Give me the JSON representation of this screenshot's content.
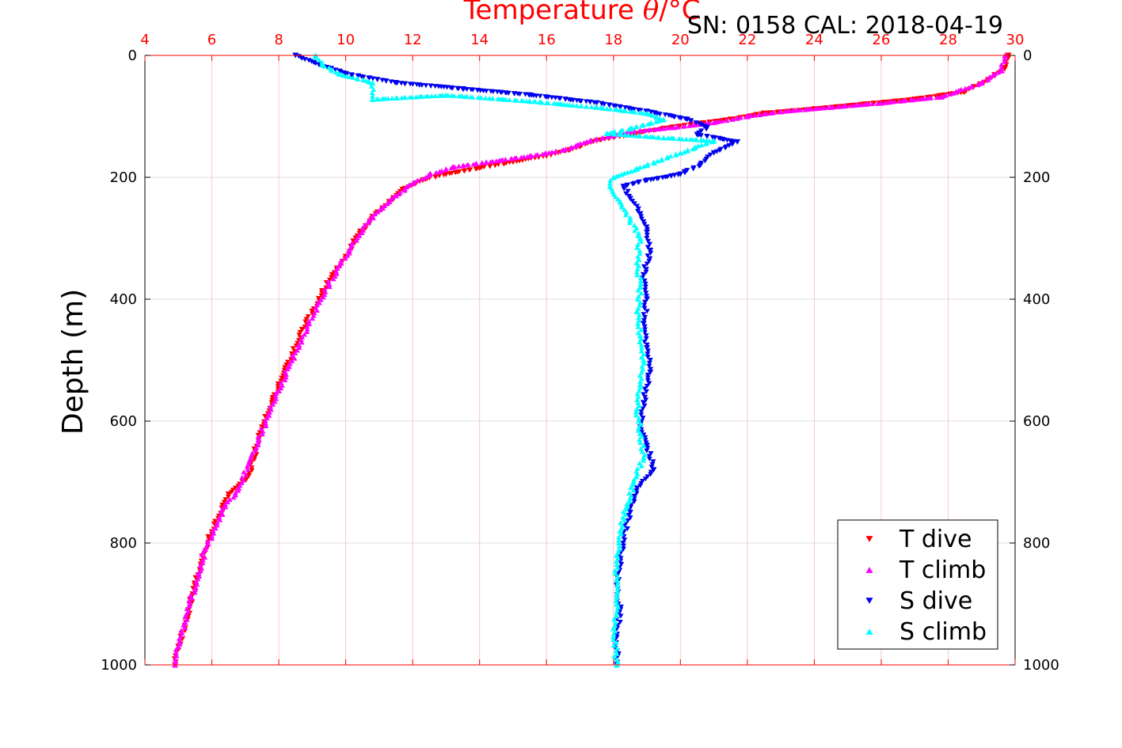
{
  "chart_data": {
    "type": "scatter",
    "title": "SN: 0158  CAL: 2018-04-19",
    "xlabel_text": "Temperature ",
    "xlabel_symbol": "θ",
    "xlabel_unit": "/°C",
    "ylabel": "Depth (m)",
    "xlim": [
      4,
      30
    ],
    "ylim": [
      1000,
      0
    ],
    "y_reversed": true,
    "xticks": [
      4,
      6,
      8,
      10,
      12,
      14,
      16,
      18,
      20,
      22,
      24,
      26,
      28,
      30
    ],
    "yticks": [
      0,
      200,
      400,
      600,
      800,
      1000
    ],
    "grid": true,
    "legend_position": "bottom-right",
    "colors": {
      "temperature_axis": "#ff0000",
      "grid_vertical": "#f2c8d8",
      "grid_horizontal": "#dcdcdc",
      "axis": "#000000"
    },
    "series": [
      {
        "name": "T dive",
        "marker": "triangle-down",
        "color": "#ff0000",
        "points": [
          [
            29.8,
            0
          ],
          [
            29.7,
            20
          ],
          [
            29.2,
            40
          ],
          [
            28.5,
            60
          ],
          [
            27.0,
            72
          ],
          [
            25.5,
            80
          ],
          [
            24.0,
            88
          ],
          [
            22.5,
            95
          ],
          [
            21.5,
            105
          ],
          [
            20.5,
            112
          ],
          [
            19.5,
            120
          ],
          [
            18.5,
            130
          ],
          [
            17.5,
            140
          ],
          [
            16.7,
            155
          ],
          [
            16.0,
            165
          ],
          [
            15.0,
            175
          ],
          [
            14.0,
            185
          ],
          [
            13.0,
            195
          ],
          [
            12.3,
            205
          ],
          [
            11.7,
            220
          ],
          [
            11.3,
            240
          ],
          [
            10.9,
            260
          ],
          [
            10.6,
            280
          ],
          [
            10.3,
            300
          ],
          [
            10.0,
            330
          ],
          [
            9.6,
            360
          ],
          [
            9.3,
            390
          ],
          [
            9.0,
            420
          ],
          [
            8.7,
            450
          ],
          [
            8.4,
            490
          ],
          [
            8.1,
            530
          ],
          [
            7.8,
            570
          ],
          [
            7.5,
            610
          ],
          [
            7.3,
            650
          ],
          [
            7.1,
            690
          ],
          [
            6.5,
            720
          ],
          [
            6.2,
            760
          ],
          [
            5.9,
            790
          ],
          [
            5.7,
            830
          ],
          [
            5.5,
            870
          ],
          [
            5.3,
            910
          ],
          [
            5.2,
            940
          ],
          [
            5.0,
            970
          ],
          [
            4.9,
            1000
          ]
        ]
      },
      {
        "name": "T climb",
        "marker": "triangle-up",
        "color": "#ff00ff",
        "points": [
          [
            29.7,
            0
          ],
          [
            29.6,
            25
          ],
          [
            29.0,
            45
          ],
          [
            27.8,
            68
          ],
          [
            26.0,
            78
          ],
          [
            24.5,
            85
          ],
          [
            23.0,
            92
          ],
          [
            22.0,
            100
          ],
          [
            21.0,
            110
          ],
          [
            19.8,
            118
          ],
          [
            18.5,
            125
          ],
          [
            17.3,
            140
          ],
          [
            16.5,
            155
          ],
          [
            15.5,
            165
          ],
          [
            14.2,
            175
          ],
          [
            13.2,
            183
          ],
          [
            12.5,
            195
          ],
          [
            12.0,
            210
          ],
          [
            11.5,
            230
          ],
          [
            11.1,
            250
          ],
          [
            10.7,
            270
          ],
          [
            10.4,
            295
          ],
          [
            10.1,
            320
          ],
          [
            9.8,
            345
          ],
          [
            9.5,
            375
          ],
          [
            9.2,
            405
          ],
          [
            8.9,
            440
          ],
          [
            8.6,
            475
          ],
          [
            8.3,
            510
          ],
          [
            8.0,
            550
          ],
          [
            7.7,
            590
          ],
          [
            7.4,
            630
          ],
          [
            7.1,
            670
          ],
          [
            6.8,
            710
          ],
          [
            6.4,
            740
          ],
          [
            6.1,
            775
          ],
          [
            5.8,
            810
          ],
          [
            5.6,
            850
          ],
          [
            5.4,
            890
          ],
          [
            5.2,
            930
          ],
          [
            5.0,
            970
          ],
          [
            4.9,
            1000
          ]
        ]
      },
      {
        "name": "S dive",
        "marker": "triangle-down",
        "color": "#0000ee",
        "points": [
          [
            8.5,
            0
          ],
          [
            9.2,
            15
          ],
          [
            10.0,
            30
          ],
          [
            11.5,
            45
          ],
          [
            13.5,
            55
          ],
          [
            15.5,
            65
          ],
          [
            17.5,
            78
          ],
          [
            19.0,
            92
          ],
          [
            20.2,
            105
          ],
          [
            20.8,
            118
          ],
          [
            20.5,
            130
          ],
          [
            21.7,
            142
          ],
          [
            21.0,
            160
          ],
          [
            20.6,
            180
          ],
          [
            20.0,
            195
          ],
          [
            19.0,
            205
          ],
          [
            18.3,
            215
          ],
          [
            18.5,
            235
          ],
          [
            18.8,
            260
          ],
          [
            19.0,
            290
          ],
          [
            19.1,
            320
          ],
          [
            18.9,
            360
          ],
          [
            19.0,
            400
          ],
          [
            18.9,
            440
          ],
          [
            19.0,
            480
          ],
          [
            19.1,
            520
          ],
          [
            18.9,
            570
          ],
          [
            18.8,
            610
          ],
          [
            19.0,
            640
          ],
          [
            19.2,
            680
          ],
          [
            18.7,
            710
          ],
          [
            18.5,
            750
          ],
          [
            18.3,
            790
          ],
          [
            18.2,
            830
          ],
          [
            18.1,
            870
          ],
          [
            18.2,
            910
          ],
          [
            18.1,
            950
          ],
          [
            18.1,
            1000
          ]
        ]
      },
      {
        "name": "S climb",
        "marker": "triangle-up",
        "color": "#00ffff",
        "points": [
          [
            9.1,
            0
          ],
          [
            9.3,
            15
          ],
          [
            9.8,
            30
          ],
          [
            10.8,
            45
          ],
          [
            10.8,
            72
          ],
          [
            13.0,
            65
          ],
          [
            15.5,
            75
          ],
          [
            17.5,
            85
          ],
          [
            19.0,
            95
          ],
          [
            19.5,
            105
          ],
          [
            18.5,
            120
          ],
          [
            17.8,
            128
          ],
          [
            19.5,
            135
          ],
          [
            21.0,
            140
          ],
          [
            20.0,
            160
          ],
          [
            19.0,
            180
          ],
          [
            18.0,
            200
          ],
          [
            17.9,
            215
          ],
          [
            18.2,
            240
          ],
          [
            18.5,
            270
          ],
          [
            18.8,
            300
          ],
          [
            18.7,
            340
          ],
          [
            18.8,
            380
          ],
          [
            18.7,
            420
          ],
          [
            18.8,
            460
          ],
          [
            18.9,
            500
          ],
          [
            18.8,
            540
          ],
          [
            18.7,
            580
          ],
          [
            18.8,
            620
          ],
          [
            18.9,
            660
          ],
          [
            18.6,
            700
          ],
          [
            18.4,
            740
          ],
          [
            18.2,
            780
          ],
          [
            18.1,
            820
          ],
          [
            18.1,
            860
          ],
          [
            18.1,
            900
          ],
          [
            18.0,
            940
          ],
          [
            18.1,
            1000
          ]
        ]
      }
    ]
  }
}
